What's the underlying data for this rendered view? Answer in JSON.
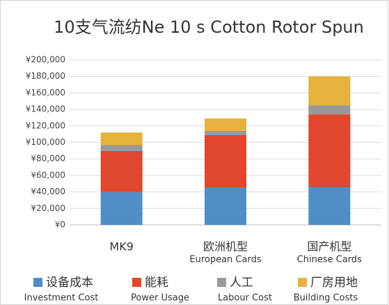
{
  "chart_data": {
    "type": "stacked_bar",
    "title": "10支气流纺Ne 10 s Cotton Rotor Spun",
    "categories": [
      "MK9",
      "欧洲机型",
      "国产机型"
    ],
    "category_subtitles": [
      null,
      "European Cards",
      "Chinese Cards"
    ],
    "series": [
      {
        "name": "设备成本",
        "name_en": "Investment Cost",
        "color": "#4f8ec6",
        "values": [
          40000,
          45000,
          46000
        ]
      },
      {
        "name": "能耗",
        "name_en": "Power Usage",
        "color": "#e0472c",
        "values": [
          49500,
          64000,
          88000
        ]
      },
      {
        "name": "人工",
        "name_en": "Labour Cost",
        "color": "#999999",
        "values": [
          7500,
          5000,
          11000
        ]
      },
      {
        "name": "厂房用地",
        "name_en": "Building Costs",
        "color": "#e6b23c",
        "values": [
          15000,
          15000,
          35000
        ]
      }
    ],
    "ylim": [
      0,
      200000
    ],
    "yticks": [
      {
        "value": 0,
        "label": "¥0"
      },
      {
        "value": 20000,
        "label": "¥20,000"
      },
      {
        "value": 40000,
        "label": "¥40,000"
      },
      {
        "value": 60000,
        "label": "¥60,000"
      },
      {
        "value": 80000,
        "label": "¥80,000"
      },
      {
        "value": 100000,
        "label": "¥100,000"
      },
      {
        "value": 120000,
        "label": "¥120,000"
      },
      {
        "value": 140000,
        "label": "¥140,000"
      },
      {
        "value": 160000,
        "label": "¥160,000"
      },
      {
        "value": 180000,
        "label": "¥180,000"
      },
      {
        "value": 200000,
        "label": "¥200,000"
      }
    ],
    "grid": true,
    "legend": "bottom"
  }
}
